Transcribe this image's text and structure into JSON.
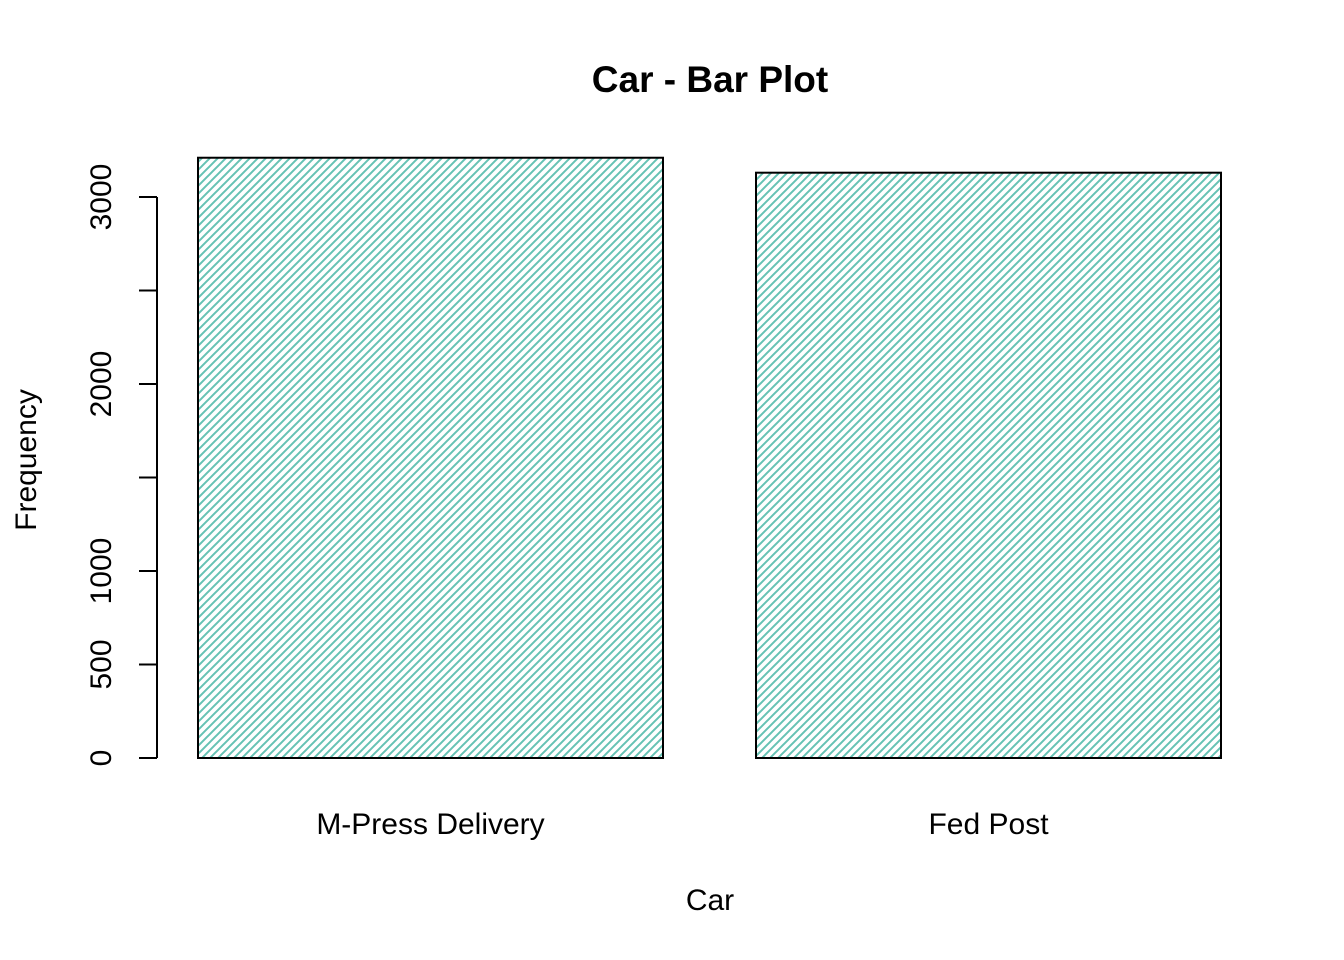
{
  "chart_data": {
    "type": "bar",
    "title": "Car - Bar Plot",
    "xlabel": "Car",
    "ylabel": "Frequency",
    "categories": [
      "M-Press Delivery",
      "Fed Post"
    ],
    "values": [
      3210,
      3130
    ],
    "ylim": [
      0,
      3210
    ],
    "yticks": [
      0,
      500,
      1000,
      1500,
      2000,
      2500,
      3000
    ],
    "ytick_labels": [
      "0",
      "500",
      "1000",
      "",
      "2000",
      "",
      "3000"
    ],
    "grid": false,
    "legend": "none",
    "bar_fill": "hatched",
    "colors": {
      "hatch": "#66c2b4",
      "bar_border": "#000000",
      "axis": "#000000",
      "background": "#ffffff"
    }
  }
}
